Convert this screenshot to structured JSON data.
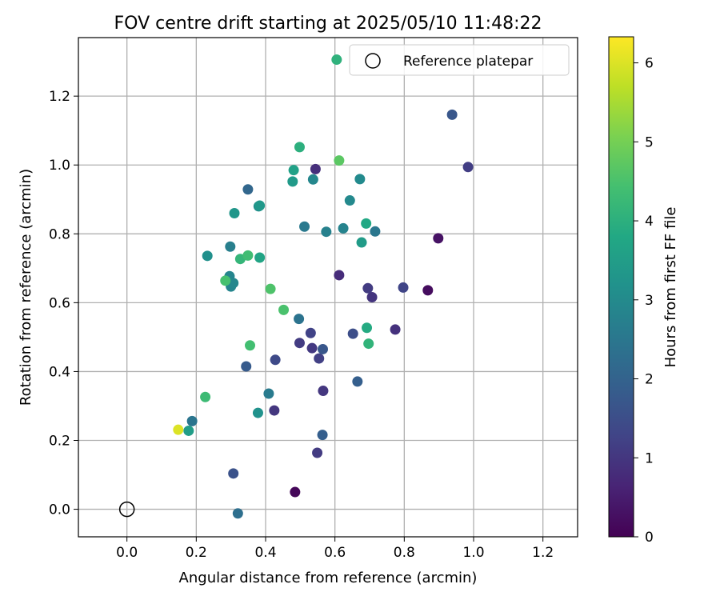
{
  "chart_data": {
    "type": "scatter",
    "title": "FOV centre drift starting at 2025/05/10 11:48:22",
    "xlabel": "Angular distance from reference (arcmin)",
    "ylabel": "Rotation from reference (arcmin)",
    "xlim": [
      -0.14,
      1.3
    ],
    "ylim": [
      -0.08,
      1.37
    ],
    "xticks": [
      "0.0",
      "0.2",
      "0.4",
      "0.6",
      "0.8",
      "1.0",
      "1.2"
    ],
    "yticks": [
      "0.0",
      "0.2",
      "0.4",
      "0.6",
      "0.8",
      "1.0",
      "1.2"
    ],
    "grid": true,
    "legend": {
      "position": "top-right",
      "label": "Reference platepar"
    },
    "reference_point": {
      "x": 0.0,
      "y": 0.0
    },
    "colorbar": {
      "label": "Hours from first FF file",
      "range": [
        0,
        6.33
      ],
      "ticks": [
        "0",
        "1",
        "2",
        "3",
        "4",
        "5",
        "6"
      ],
      "colormap": "viridis"
    },
    "points": [
      {
        "x": 0.485,
        "y": 0.05,
        "c": 0.1
      },
      {
        "x": 0.868,
        "y": 0.636,
        "c": 0.2
      },
      {
        "x": 0.898,
        "y": 0.787,
        "c": 0.3
      },
      {
        "x": 0.612,
        "y": 0.68,
        "c": 0.8
      },
      {
        "x": 0.544,
        "y": 0.988,
        "c": 0.85
      },
      {
        "x": 0.774,
        "y": 0.522,
        "c": 0.9
      },
      {
        "x": 0.707,
        "y": 0.616,
        "c": 0.95
      },
      {
        "x": 0.566,
        "y": 0.344,
        "c": 1.0
      },
      {
        "x": 0.425,
        "y": 0.287,
        "c": 1.0
      },
      {
        "x": 0.534,
        "y": 0.468,
        "c": 1.05
      },
      {
        "x": 0.498,
        "y": 0.483,
        "c": 1.1
      },
      {
        "x": 0.695,
        "y": 0.642,
        "c": 1.1
      },
      {
        "x": 0.549,
        "y": 0.164,
        "c": 1.1
      },
      {
        "x": 0.984,
        "y": 0.994,
        "c": 1.15
      },
      {
        "x": 0.554,
        "y": 0.438,
        "c": 1.2
      },
      {
        "x": 0.53,
        "y": 0.512,
        "c": 1.25
      },
      {
        "x": 0.797,
        "y": 0.644,
        "c": 1.3
      },
      {
        "x": 0.428,
        "y": 0.434,
        "c": 1.4
      },
      {
        "x": 0.652,
        "y": 0.51,
        "c": 1.5
      },
      {
        "x": 0.307,
        "y": 0.104,
        "c": 1.6
      },
      {
        "x": 0.938,
        "y": 1.146,
        "c": 1.7
      },
      {
        "x": 0.565,
        "y": 0.465,
        "c": 1.7
      },
      {
        "x": 0.344,
        "y": 0.415,
        "c": 1.8
      },
      {
        "x": 0.665,
        "y": 0.371,
        "c": 1.9
      },
      {
        "x": 0.564,
        "y": 0.216,
        "c": 1.9
      },
      {
        "x": 0.349,
        "y": 0.929,
        "c": 2.1
      },
      {
        "x": 0.32,
        "y": -0.012,
        "c": 2.3
      },
      {
        "x": 0.496,
        "y": 0.553,
        "c": 2.4
      },
      {
        "x": 0.188,
        "y": 0.256,
        "c": 2.45
      },
      {
        "x": 0.716,
        "y": 0.807,
        "c": 2.5
      },
      {
        "x": 0.512,
        "y": 0.821,
        "c": 2.55
      },
      {
        "x": 0.409,
        "y": 0.336,
        "c": 2.6
      },
      {
        "x": 0.298,
        "y": 0.763,
        "c": 2.7
      },
      {
        "x": 0.575,
        "y": 0.806,
        "c": 2.75
      },
      {
        "x": 0.624,
        "y": 0.816,
        "c": 2.8
      },
      {
        "x": 0.296,
        "y": 0.677,
        "c": 2.85
      },
      {
        "x": 0.3,
        "y": 0.647,
        "c": 2.85
      },
      {
        "x": 0.307,
        "y": 0.657,
        "c": 2.9
      },
      {
        "x": 0.537,
        "y": 0.958,
        "c": 2.9
      },
      {
        "x": 0.643,
        "y": 0.897,
        "c": 2.95
      },
      {
        "x": 0.672,
        "y": 0.959,
        "c": 3.0
      },
      {
        "x": 0.38,
        "y": 0.88,
        "c": 3.1
      },
      {
        "x": 0.232,
        "y": 0.736,
        "c": 3.15
      },
      {
        "x": 0.378,
        "y": 0.28,
        "c": 3.2
      },
      {
        "x": 0.31,
        "y": 0.86,
        "c": 3.3
      },
      {
        "x": 0.383,
        "y": 0.882,
        "c": 3.35
      },
      {
        "x": 0.478,
        "y": 0.952,
        "c": 3.4
      },
      {
        "x": 0.677,
        "y": 0.775,
        "c": 3.45
      },
      {
        "x": 0.178,
        "y": 0.228,
        "c": 3.5
      },
      {
        "x": 0.481,
        "y": 0.985,
        "c": 3.6
      },
      {
        "x": 0.383,
        "y": 0.731,
        "c": 3.7
      },
      {
        "x": 0.69,
        "y": 0.83,
        "c": 3.8
      },
      {
        "x": 0.692,
        "y": 0.527,
        "c": 3.85
      },
      {
        "x": 0.498,
        "y": 1.052,
        "c": 4.0
      },
      {
        "x": 0.605,
        "y": 1.306,
        "c": 4.05
      },
      {
        "x": 0.697,
        "y": 0.481,
        "c": 4.1
      },
      {
        "x": 0.327,
        "y": 0.727,
        "c": 4.15
      },
      {
        "x": 0.226,
        "y": 0.326,
        "c": 4.3
      },
      {
        "x": 0.349,
        "y": 0.737,
        "c": 4.35
      },
      {
        "x": 0.355,
        "y": 0.476,
        "c": 4.4
      },
      {
        "x": 0.284,
        "y": 0.664,
        "c": 4.45
      },
      {
        "x": 0.452,
        "y": 0.579,
        "c": 4.5
      },
      {
        "x": 0.414,
        "y": 0.64,
        "c": 4.55
      },
      {
        "x": 0.612,
        "y": 1.013,
        "c": 4.7
      },
      {
        "x": 0.148,
        "y": 0.231,
        "c": 6.0
      }
    ]
  }
}
